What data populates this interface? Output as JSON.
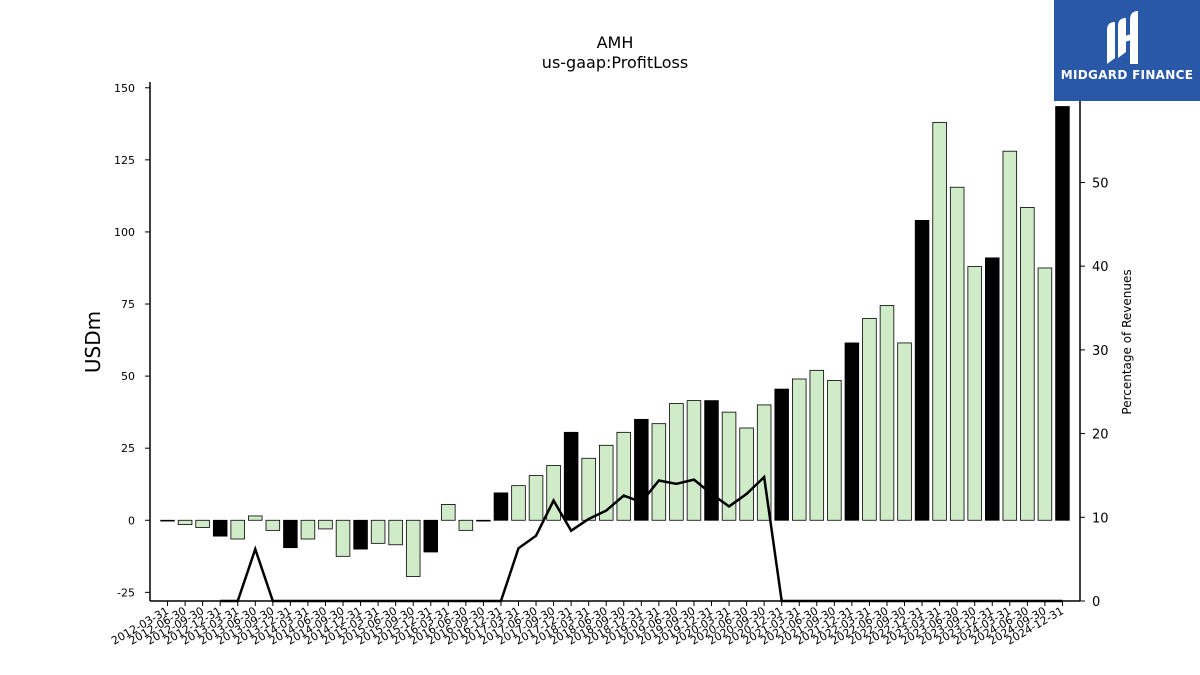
{
  "chart_data": {
    "type": "bar",
    "title": "AMH",
    "subtitle": "us-gaap:ProfitLoss",
    "ylabel": "USDm",
    "y2label": "Percentage of Revenues",
    "ylim": [
      -28,
      152
    ],
    "y2lim": [
      0,
      62
    ],
    "yticks": [
      -25,
      0,
      25,
      50,
      75,
      100,
      125,
      150
    ],
    "y2ticks": [
      0,
      10,
      20,
      30,
      40,
      50
    ],
    "categories": [
      "2012-03-31",
      "2012-06-30",
      "2012-09-30",
      "2012-12-31",
      "2013-03-31",
      "2013-06-30",
      "2013-09-30",
      "2013-12-31",
      "2014-03-31",
      "2014-06-30",
      "2014-09-30",
      "2014-12-31",
      "2015-03-31",
      "2015-06-30",
      "2015-09-30",
      "2015-12-31",
      "2016-03-31",
      "2016-06-30",
      "2016-09-30",
      "2016-12-31",
      "2017-03-31",
      "2017-06-30",
      "2017-09-30",
      "2017-12-31",
      "2018-03-31",
      "2018-06-30",
      "2018-09-30",
      "2018-12-31",
      "2019-03-31",
      "2019-06-30",
      "2019-09-30",
      "2019-12-31",
      "2020-03-31",
      "2020-06-30",
      "2020-09-30",
      "2020-12-31",
      "2021-03-31",
      "2021-06-30",
      "2021-09-30",
      "2021-12-31",
      "2022-03-31",
      "2022-06-30",
      "2022-09-30",
      "2022-12-31",
      "2023-03-31",
      "2023-06-30",
      "2023-09-30",
      "2023-12-31",
      "2024-03-31",
      "2024-06-30",
      "2024-09-30",
      "2024-12-31"
    ],
    "series": [
      {
        "kind": "bar",
        "values": [
          0,
          -1.5,
          -2.5,
          -5.5,
          -6.5,
          1.5,
          -3.5,
          -9.5,
          -6.5,
          -3,
          -12.5,
          -10,
          -8,
          -8.5,
          -19.5,
          -11,
          5.5,
          -3.5,
          0,
          9.5,
          12,
          15.5,
          19,
          30.5,
          21.5,
          26,
          30.5,
          35,
          33.5,
          40.5,
          41.5,
          41.5,
          37.5,
          32,
          40,
          45.5,
          49,
          52,
          48.5,
          61.5,
          70,
          74.5,
          61.5,
          104,
          138,
          115.5,
          88,
          91,
          128,
          108.5,
          87.5,
          143.5
        ]
      },
      {
        "kind": "line",
        "values": [
          0,
          null,
          null,
          0,
          0,
          6.2,
          0,
          0,
          0,
          0,
          0,
          0,
          0,
          0,
          0,
          0,
          0,
          0,
          0,
          0,
          6.3,
          7.8,
          12,
          8.4,
          9.8,
          10.8,
          12.6,
          11.8,
          14.4,
          14,
          14.5,
          12.8,
          11.3,
          12.8,
          14.8,
          0,
          0,
          0,
          0,
          0,
          0,
          0,
          0,
          0,
          0,
          0,
          0,
          0,
          0,
          0,
          0,
          0
        ]
      }
    ],
    "bar_colors": {
      "annual": "#000000",
      "quarterly": "#d0ebc8",
      "edge": "#000000"
    },
    "line_color": "#000000"
  },
  "logo": {
    "name": "MIDGARD FINANCE",
    "background": "#2a58a8"
  }
}
